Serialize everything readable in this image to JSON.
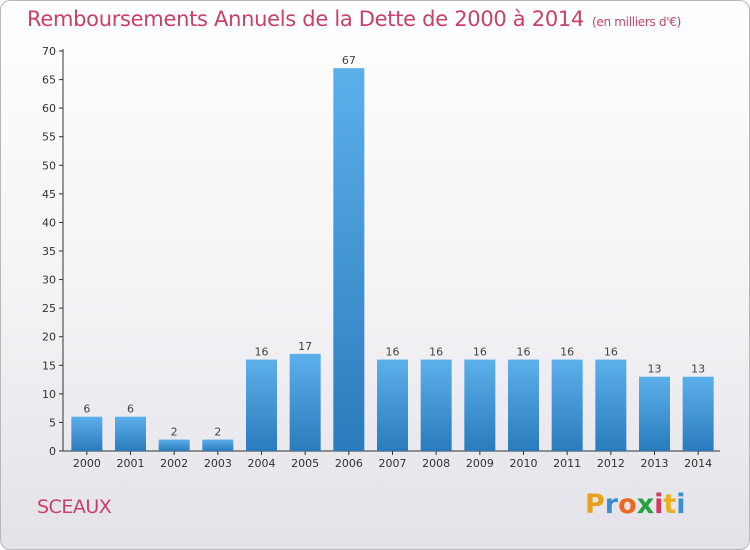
{
  "title": "Remboursements Annuels de la Dette de 2000 à 2014",
  "subtitle": "(en milliers d'€)",
  "commune": "SCEAUX",
  "logo": {
    "letters": [
      "P",
      "r",
      "o",
      "x",
      "i",
      "t",
      "i"
    ],
    "colors": [
      "#e8a020",
      "#3a8fd0",
      "#e86a20",
      "#2aa040",
      "#d23a60",
      "#e8b020",
      "#3a8fd0"
    ]
  },
  "colors": {
    "bar_light": "#5cb0ea",
    "bar_dark": "#2a7bbd",
    "accent": "#c8406a"
  },
  "chart_data": {
    "type": "bar",
    "categories": [
      "2000",
      "2001",
      "2002",
      "2003",
      "2004",
      "2005",
      "2006",
      "2007",
      "2008",
      "2009",
      "2010",
      "2011",
      "2012",
      "2013",
      "2014"
    ],
    "values": [
      6,
      6,
      2,
      2,
      16,
      17,
      67,
      16,
      16,
      16,
      16,
      16,
      16,
      13,
      13
    ],
    "data_labels": [
      "6",
      "6",
      "2",
      "2",
      "16",
      "17",
      "67",
      "16",
      "16",
      "16",
      "16",
      "16",
      "16",
      "13",
      "13"
    ],
    "title": "Remboursements Annuels de la Dette de 2000 à 2014",
    "xlabel": "",
    "ylabel": "",
    "ylim": [
      0,
      70
    ],
    "yticks": [
      0,
      5,
      10,
      15,
      20,
      25,
      30,
      35,
      40,
      45,
      50,
      55,
      60,
      65,
      70
    ],
    "grid": false,
    "legend": "none"
  }
}
